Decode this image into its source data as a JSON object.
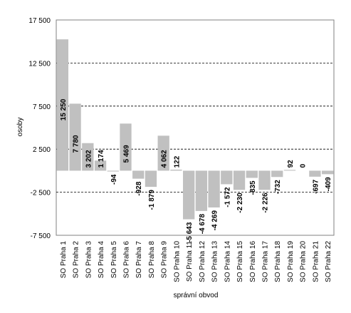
{
  "chart_data": {
    "type": "bar",
    "xlabel": "správní obvod",
    "ylabel": "osoby",
    "ylim": [
      -7500,
      17500
    ],
    "yticks": [
      -7500,
      -2500,
      2500,
      7500,
      12500,
      17500
    ],
    "ytick_labels": [
      "-7 500",
      "-2 500",
      "2 500",
      "7 500",
      "12 500",
      "17 500"
    ],
    "grid": "horizontal dashed",
    "bar_color": "#c0c0c0",
    "categories": [
      "SO Praha 1",
      "SO Praha 2",
      "SO Praha 3",
      "SO Praha 4",
      "SO Praha 5",
      "SO Praha 6",
      "SO Praha 7",
      "SO Praha 8",
      "SO Praha 9",
      "SO Praha 10",
      "SO Praha 11",
      "SO Praha 12",
      "SO Praha 13",
      "SO Praha 14",
      "SO Praha 15",
      "SO Praha 16",
      "SO Praha 17",
      "SO Praha 18",
      "SO Praha 19",
      "SO Praha 20",
      "SO Praha 21",
      "SO Praha 22"
    ],
    "values": [
      15250,
      7780,
      3202,
      1174,
      -94,
      5469,
      -928,
      -1879,
      4062,
      122,
      -5643,
      -4678,
      -4269,
      -1572,
      -2230,
      -835,
      -2226,
      -732,
      92,
      0,
      -697,
      -409
    ],
    "value_labels": [
      "15 250",
      "7 780",
      "3 202",
      "1 174",
      "-94",
      "5 469",
      "-928",
      "-1 879",
      "4 062",
      "122",
      "-5 643",
      "-4 678",
      "-4 269",
      "-1 572",
      "-2 230",
      "-835",
      "-2 226",
      "-732",
      "92",
      "0",
      "-697",
      "-409"
    ]
  }
}
